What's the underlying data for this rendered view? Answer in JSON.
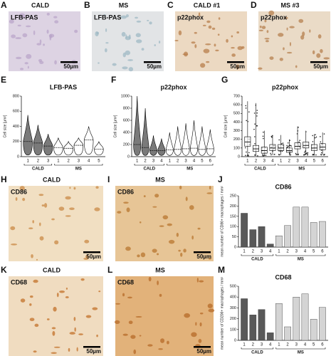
{
  "images": [
    {
      "letter": "A",
      "title": "CALD",
      "stain": "LFB-PAS",
      "scale": "50µm",
      "color": "#ddd3e3",
      "spot": "#b9a6c9"
    },
    {
      "letter": "B",
      "title": "MS",
      "stain": "LFB-PAS",
      "scale": "50µm",
      "color": "#e2e4e6",
      "spot": "#9fb9c4"
    },
    {
      "letter": "C",
      "title": "CALD #1",
      "stain": "p22phox",
      "scale": "50µm",
      "color": "#ecd9c2",
      "spot": "#b87d4b"
    },
    {
      "letter": "D",
      "title": "MS #3",
      "stain": "p22phox",
      "scale": "50µm",
      "color": "#eadbc7",
      "spot": "#b5804f"
    },
    {
      "letter": "H",
      "title": "CALD",
      "stain": "CD86",
      "scale": "50µm",
      "color": "#f1dfc2",
      "spot": "#c98a45"
    },
    {
      "letter": "I",
      "title": "MS",
      "stain": "CD86",
      "scale": "50µm",
      "color": "#e7c596",
      "spot": "#b8752f"
    },
    {
      "letter": "K",
      "title": "CALD",
      "stain": "CD68",
      "scale": "50µm",
      "color": "#f0dcc0",
      "spot": "#c3722a"
    },
    {
      "letter": "L",
      "title": "MS",
      "stain": "CD68",
      "scale": "50µm",
      "color": "#e2b27a",
      "spot": "#b56a28"
    }
  ],
  "chart_data": [
    {
      "type": "violin",
      "letter": "E",
      "title": "LFB-PAS",
      "ylabel": "Cell size [µm²]",
      "ylim": [
        0,
        800
      ],
      "yticks": [
        0,
        200,
        400,
        600,
        800
      ],
      "series": [
        {
          "name": "CALD",
          "color": "#7a7a7a",
          "categories": [
            "1",
            "2",
            "3"
          ],
          "min": [
            20,
            20,
            20
          ],
          "median": [
            200,
            180,
            140
          ],
          "max": [
            550,
            420,
            300
          ]
        },
        {
          "name": "MS",
          "color": "#ffffff",
          "categories": [
            "1",
            "2",
            "3",
            "4",
            "5"
          ],
          "min": [
            20,
            20,
            20,
            30,
            20
          ],
          "median": [
            120,
            110,
            150,
            220,
            100
          ],
          "max": [
            250,
            200,
            250,
            400,
            200
          ]
        }
      ]
    },
    {
      "type": "violin",
      "letter": "F",
      "title": "p22phox",
      "ylabel": "Cell size [µm²]",
      "ylim": [
        0,
        1000
      ],
      "yticks": [
        0,
        200,
        400,
        600,
        800,
        1000
      ],
      "series": [
        {
          "name": "CALD",
          "color": "#7a7a7a",
          "categories": [
            "1",
            "2",
            "3",
            "4"
          ],
          "min": [
            20,
            20,
            20,
            20
          ],
          "median": [
            200,
            150,
            100,
            100
          ],
          "max": [
            1000,
            800,
            350,
            300
          ]
        },
        {
          "name": "MS",
          "color": "#ffffff",
          "categories": [
            "1",
            "2",
            "3",
            "4",
            "5",
            "6"
          ],
          "min": [
            20,
            20,
            20,
            20,
            20,
            20
          ],
          "median": [
            110,
            120,
            130,
            140,
            120,
            130
          ],
          "max": [
            400,
            500,
            550,
            600,
            500,
            450
          ]
        }
      ]
    },
    {
      "type": "box",
      "letter": "G",
      "title": "p22phox",
      "ylabel": "Cell size [µm²]",
      "ylim": [
        0,
        700
      ],
      "yticks": [
        0,
        100,
        200,
        300,
        400,
        500,
        600,
        700
      ],
      "series": [
        {
          "name": "CALD",
          "color": "#ffffff",
          "categories": [
            "1",
            "2",
            "3",
            "4"
          ],
          "min": [
            10,
            10,
            10,
            20
          ],
          "q1": [
            120,
            60,
            40,
            70
          ],
          "median": [
            170,
            90,
            70,
            100
          ],
          "q3": [
            230,
            130,
            110,
            140
          ],
          "max": [
            640,
            620,
            300,
            250
          ]
        },
        {
          "name": "MS",
          "color": "#ffffff",
          "categories": [
            "1",
            "2",
            "3",
            "4",
            "5",
            "6"
          ],
          "min": [
            20,
            20,
            20,
            20,
            20,
            20
          ],
          "q1": [
            70,
            50,
            90,
            100,
            70,
            80
          ],
          "median": [
            100,
            70,
            120,
            130,
            100,
            110
          ],
          "q3": [
            140,
            100,
            160,
            170,
            140,
            150
          ],
          "max": [
            250,
            200,
            350,
            300,
            260,
            280
          ]
        }
      ]
    },
    {
      "type": "bar",
      "letter": "J",
      "title": "CD86",
      "ylabel": "mean number of CD86+ macrophages / mm²",
      "ylim": [
        0,
        250
      ],
      "yticks": [
        0,
        50,
        100,
        150,
        200,
        250
      ],
      "series": [
        {
          "name": "CALD",
          "color": "#595959",
          "categories": [
            "1",
            "2",
            "3",
            "4"
          ],
          "values": [
            165,
            85,
            100,
            15
          ]
        },
        {
          "name": "MS",
          "color": "#d4d4d4",
          "categories": [
            "1",
            "2",
            "3",
            "4",
            "5",
            "6"
          ],
          "values": [
            55,
            105,
            195,
            195,
            120,
            125
          ]
        }
      ]
    },
    {
      "type": "bar",
      "letter": "M",
      "title": "CD68",
      "ylabel": "mean number of CD206+ macrophages / mm²",
      "ylim": [
        0,
        500
      ],
      "yticks": [
        0,
        100,
        200,
        300,
        400,
        500
      ],
      "series": [
        {
          "name": "CALD",
          "color": "#595959",
          "categories": [
            "1",
            "2",
            "3",
            "4"
          ],
          "values": [
            385,
            235,
            285,
            70
          ]
        },
        {
          "name": "MS",
          "color": "#d4d4d4",
          "categories": [
            "1",
            "2",
            "3",
            "4",
            "5",
            "6"
          ],
          "values": [
            340,
            125,
            400,
            430,
            195,
            305
          ]
        }
      ]
    }
  ]
}
